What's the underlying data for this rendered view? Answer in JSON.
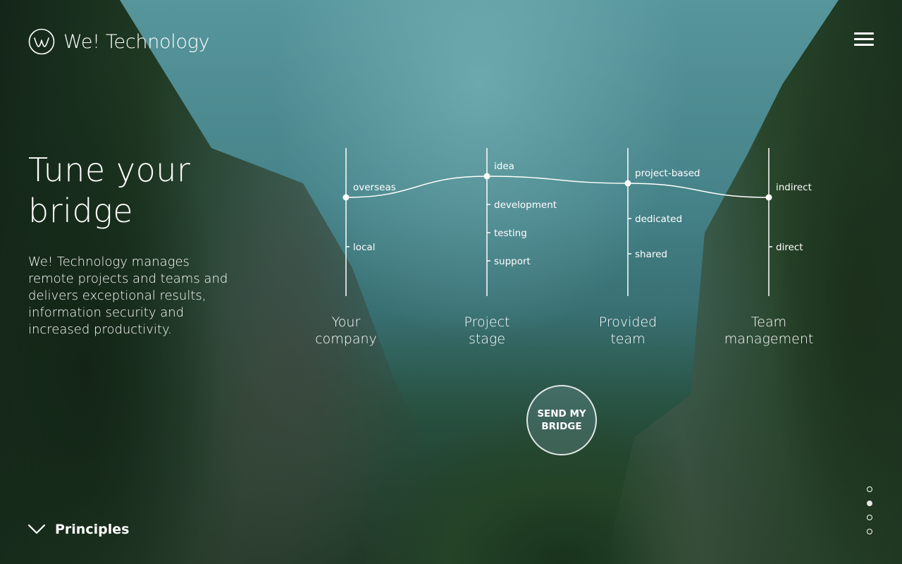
{
  "brand": {
    "name": "We! Technology"
  },
  "hero": {
    "title_line1": "Tune your",
    "title_line2": "bridge",
    "description": "We! Technology manages remote projects and teams and delivers exceptional results, information security and increased productivity."
  },
  "configurator": {
    "columns": [
      {
        "label_line1": "Your",
        "label_line2": "company",
        "options": [
          "overseas",
          "local"
        ],
        "selected": "overseas"
      },
      {
        "label_line1": "Project",
        "label_line2": "stage",
        "options": [
          "idea",
          "development",
          "testing",
          "support"
        ],
        "selected": "idea"
      },
      {
        "label_line1": "Provided",
        "label_line2": "team",
        "options": [
          "project-based",
          "dedicated",
          "shared"
        ],
        "selected": "project-based"
      },
      {
        "label_line1": "Team",
        "label_line2": "management",
        "options": [
          "indirect",
          "direct"
        ],
        "selected": "indirect"
      }
    ]
  },
  "cta": {
    "line1": "SEND MY",
    "line2": "BRIDGE"
  },
  "pagination": {
    "count": 4,
    "active": 2
  },
  "footer": {
    "principles_label": "Principles"
  },
  "icons": {
    "logo": "w-circle-logo-icon",
    "menu": "hamburger-menu-icon",
    "scroll": "chevron-down-icon"
  }
}
